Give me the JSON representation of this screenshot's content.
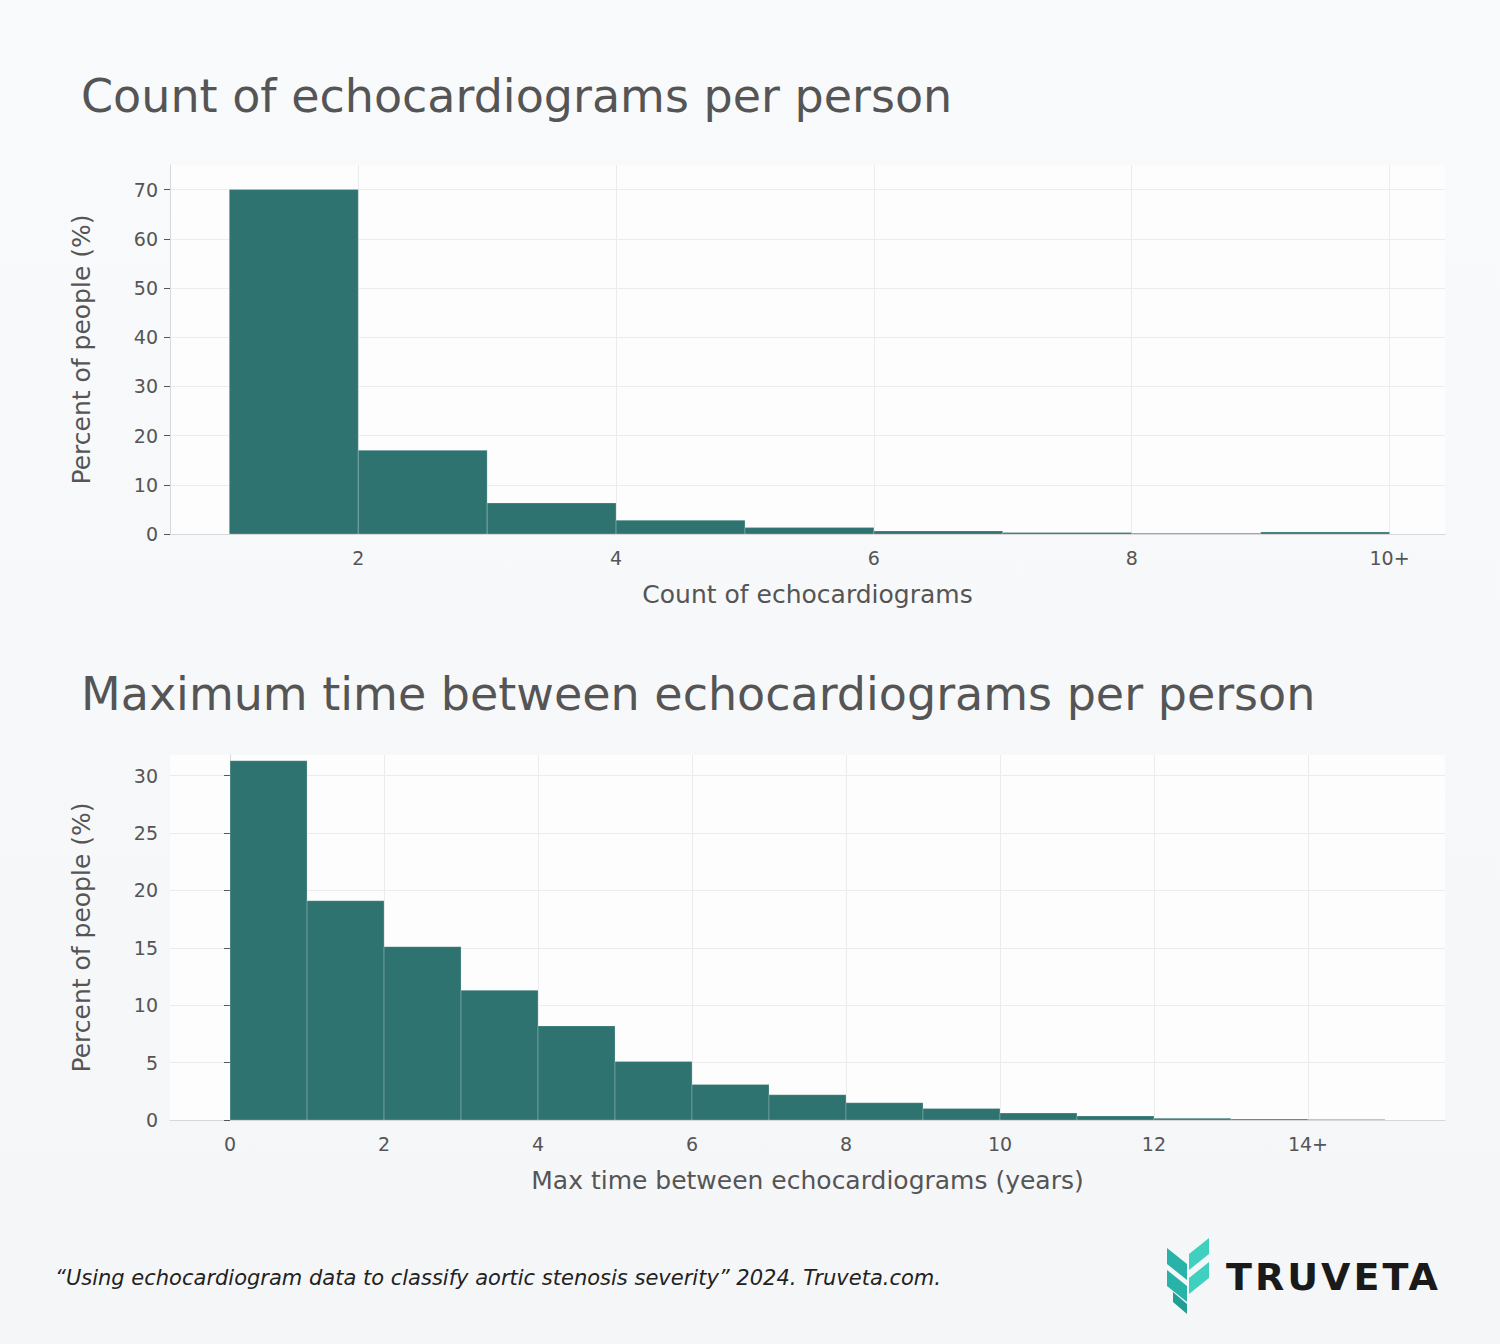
{
  "chart_data": [
    {
      "type": "histogram",
      "title": "Count of echocardiograms per person",
      "x_label": "Count of echocardiograms",
      "y_label": "Percent of people (%)",
      "bins": [
        1,
        2,
        3,
        4,
        5,
        6,
        7,
        8,
        9,
        10
      ],
      "values": [
        70,
        17,
        6.3,
        2.8,
        1.3,
        0.6,
        0.3,
        0.15,
        0.4
      ],
      "color": "#2e7370",
      "xlim": [
        0.54,
        10.43
      ],
      "ylim": [
        0,
        75
      ],
      "xticks": [
        2,
        4,
        6,
        8,
        {
          "value": 10,
          "label": "10+"
        }
      ],
      "yticks": [
        0,
        10,
        20,
        30,
        40,
        50,
        60,
        70
      ],
      "grid": true
    },
    {
      "type": "histogram",
      "title": "Maximum time between echocardiograms per person",
      "x_label": "Max time between echocardiograms (years)",
      "y_label": "Percent of people (%)",
      "bins": [
        0,
        1,
        2,
        3,
        4,
        5,
        6,
        7,
        8,
        9,
        10,
        11,
        12,
        13,
        14,
        15
      ],
      "values": [
        31.3,
        19.1,
        15.1,
        11.3,
        8.2,
        5.1,
        3.1,
        2.2,
        1.5,
        1.0,
        0.6,
        0.35,
        0.15,
        0.08,
        0.05
      ],
      "color": "#2e7370",
      "xlim": [
        -0.78,
        15.78
      ],
      "ylim": [
        0,
        31.8
      ],
      "xticks": [
        0,
        2,
        4,
        6,
        8,
        10,
        12,
        {
          "value": 14,
          "label": "14+"
        }
      ],
      "yticks": [
        0,
        5,
        10,
        15,
        20,
        25,
        30
      ],
      "grid": true
    }
  ],
  "footer": "“Using echocardiogram data to classify aortic stenosis severity” 2024. Truveta.com.",
  "logo": "TRUVETA"
}
